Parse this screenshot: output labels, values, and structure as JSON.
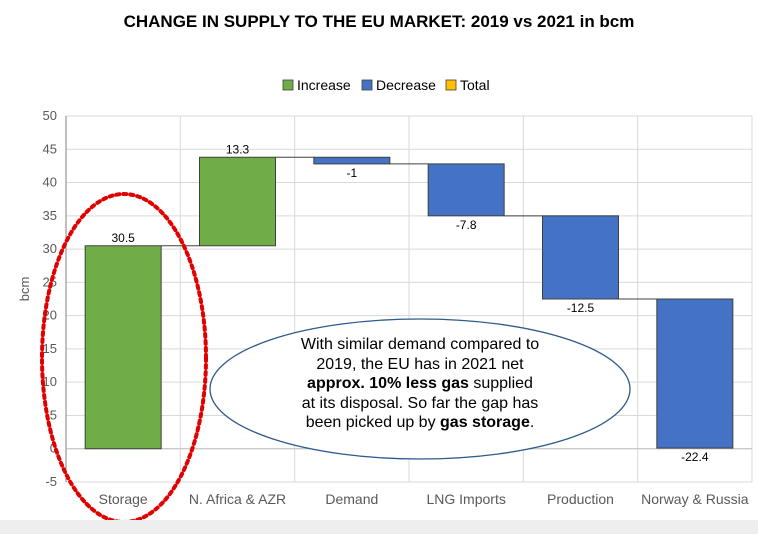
{
  "title": "CHANGE IN SUPPLY TO THE EU MARKET: 2019 vs 2021 in bcm",
  "annotation": {
    "line1": "With similar demand compared to",
    "line2": "2019, the EU has in 2021 net",
    "line3_bold": "approx. 10% less gas",
    "line3_rest": " supplied",
    "line4": "at its disposal. So far the gap has",
    "line5_pre": "been picked up by ",
    "line5_bold": "gas storage",
    "line5_post": "."
  },
  "colors": {
    "increase": "#70ad47",
    "decrease": "#4472c4",
    "total": "#ffc000",
    "highlight_circle": "#e00000",
    "annotation_outline": "#2e5a8c"
  },
  "chart_data": {
    "type": "bar",
    "subtype": "waterfall",
    "title": "CHANGE IN SUPPLY TO THE EU MARKET: 2019 vs 2021 in bcm",
    "xlabel": "",
    "ylabel": "bcm",
    "ylim": [
      -5,
      50
    ],
    "yticks": [
      -5,
      0,
      5,
      10,
      15,
      20,
      25,
      30,
      35,
      40,
      45,
      50
    ],
    "grid": true,
    "legend_position": "top-center",
    "legend": [
      "Increase",
      "Decrease",
      "Total"
    ],
    "categories": [
      "Storage",
      "N. Africa & AZR",
      "Demand",
      "LNG Imports",
      "Production",
      "Norway & Russia"
    ],
    "values": [
      30.5,
      13.3,
      -1,
      -7.8,
      -12.5,
      -22.4
    ],
    "data_labels": [
      "30.5",
      "13.3",
      "-1",
      "-7.8",
      "-12.5",
      "-22.4"
    ]
  }
}
